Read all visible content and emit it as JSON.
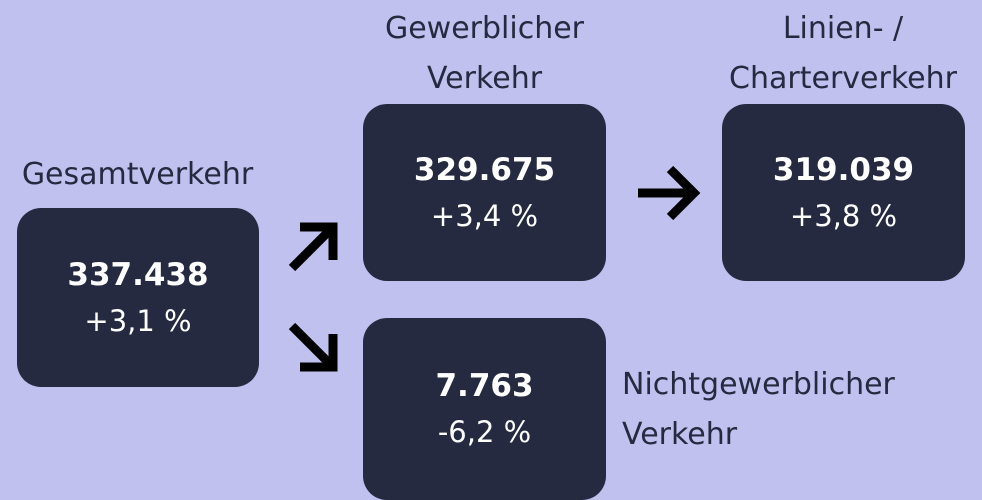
{
  "nodes": [
    {
      "label_lines": [
        "Gesamtverkehr"
      ],
      "value": "337.438",
      "change": "+3,1 %"
    },
    {
      "label_lines": [
        "Gewerblicher",
        "Verkehr"
      ],
      "value": "329.675",
      "change": "+3,4 %"
    },
    {
      "label_lines": [
        "Linien- /",
        "Charterverkehr"
      ],
      "value": "319.039",
      "change": "+3,8 %"
    },
    {
      "label_lines": [
        "Nichtgewerblicher",
        "Verkehr"
      ],
      "value": "7.763",
      "change": "-6,2 %"
    }
  ]
}
